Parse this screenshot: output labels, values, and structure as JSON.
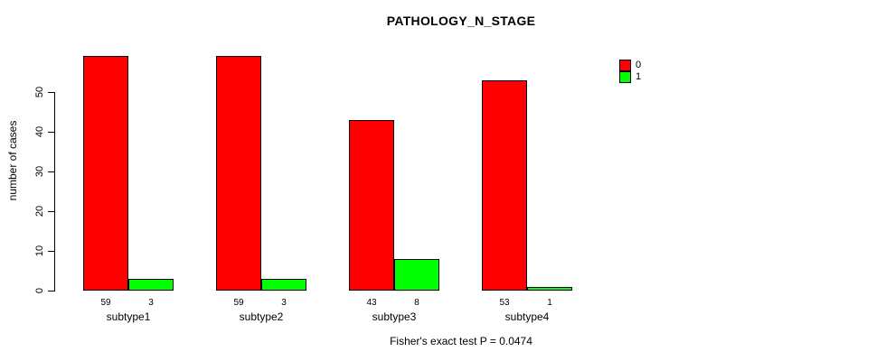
{
  "chart_data": {
    "type": "bar",
    "title": "PATHOLOGY_N_STAGE",
    "ylabel": "number of cases",
    "xlabel": "",
    "categories": [
      "subtype1",
      "subtype2",
      "subtype3",
      "subtype4"
    ],
    "series": [
      {
        "name": "0",
        "color": "#FF0000",
        "values": [
          59,
          59,
          43,
          53
        ]
      },
      {
        "name": "1",
        "color": "#00FF00",
        "values": [
          3,
          3,
          8,
          1
        ]
      }
    ],
    "y_ticks": [
      0,
      10,
      20,
      30,
      40,
      50
    ],
    "ylim": [
      0,
      59
    ],
    "grid": false,
    "legend_position": "top-right",
    "bar_value_labels": true,
    "footer": "Fisher's exact test P = 0.0474"
  }
}
